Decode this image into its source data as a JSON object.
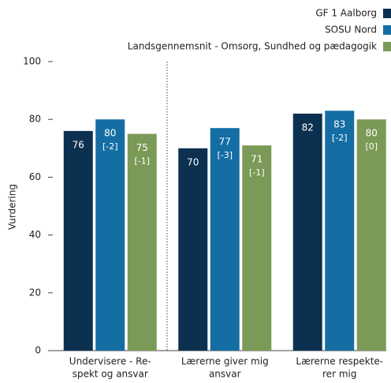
{
  "chart_data": {
    "type": "bar",
    "y_label": "Vurdering",
    "categories": [
      [
        "Undervisere - Re-",
        "spekt og ansvar"
      ],
      [
        "Lærerne giver mig",
        "ansvar"
      ],
      [
        "Lærerne respekte-",
        "rer mig"
      ]
    ],
    "series": [
      {
        "name": "GF 1 Aalborg",
        "color": "#0c3050",
        "values": [
          76,
          70,
          82
        ]
      },
      {
        "name": "SOSU Nord",
        "color": "#146ea3",
        "values": [
          80,
          77,
          83
        ],
        "differences": [
          -2,
          -3,
          -2
        ],
        "difference_labels": [
          "[-2]",
          "[-3]",
          "[-2]"
        ]
      },
      {
        "name": "Landsgennemsnit - Omsorg, Sundhed og pædagogik",
        "color": "#7b9a57",
        "values": [
          75,
          71,
          80
        ],
        "differences": [
          -1,
          -1,
          0
        ],
        "difference_labels": [
          "[-1]",
          "[-1]",
          "[0]"
        ]
      }
    ],
    "ylim": [
      0,
      100
    ],
    "yticks": [
      0,
      20,
      40,
      60,
      80,
      100
    ],
    "legend": "top-right"
  }
}
